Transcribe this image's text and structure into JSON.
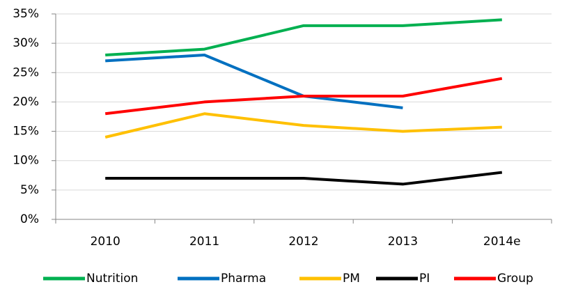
{
  "chart_data": {
    "type": "line",
    "categories": [
      "2010",
      "2011",
      "2012",
      "2013",
      "2014e"
    ],
    "series": [
      {
        "name": "Nutrition",
        "color": "#00b050",
        "values": [
          28,
          29,
          33,
          33,
          34
        ]
      },
      {
        "name": "Pharma",
        "color": "#0070c0",
        "values": [
          27,
          28,
          21,
          19,
          null
        ]
      },
      {
        "name": "PM",
        "color": "#ffc000",
        "values": [
          14,
          18,
          16,
          15,
          15.7
        ]
      },
      {
        "name": "PI",
        "color": "#000000",
        "values": [
          7,
          7,
          7,
          6,
          8
        ]
      },
      {
        "name": "Group",
        "color": "#ff0000",
        "values": [
          18,
          20,
          21,
          21,
          24
        ]
      }
    ],
    "ylim": [
      0,
      35
    ],
    "yticks": [
      {
        "value": 0,
        "label": "0%"
      },
      {
        "value": 5,
        "label": "5%"
      },
      {
        "value": 10,
        "label": "10%"
      },
      {
        "value": 15,
        "label": "15%"
      },
      {
        "value": 20,
        "label": "20%"
      },
      {
        "value": 25,
        "label": "25%"
      },
      {
        "value": 30,
        "label": "30%"
      },
      {
        "value": 35,
        "label": "35%"
      }
    ],
    "grid": true,
    "legend": "bottom"
  }
}
